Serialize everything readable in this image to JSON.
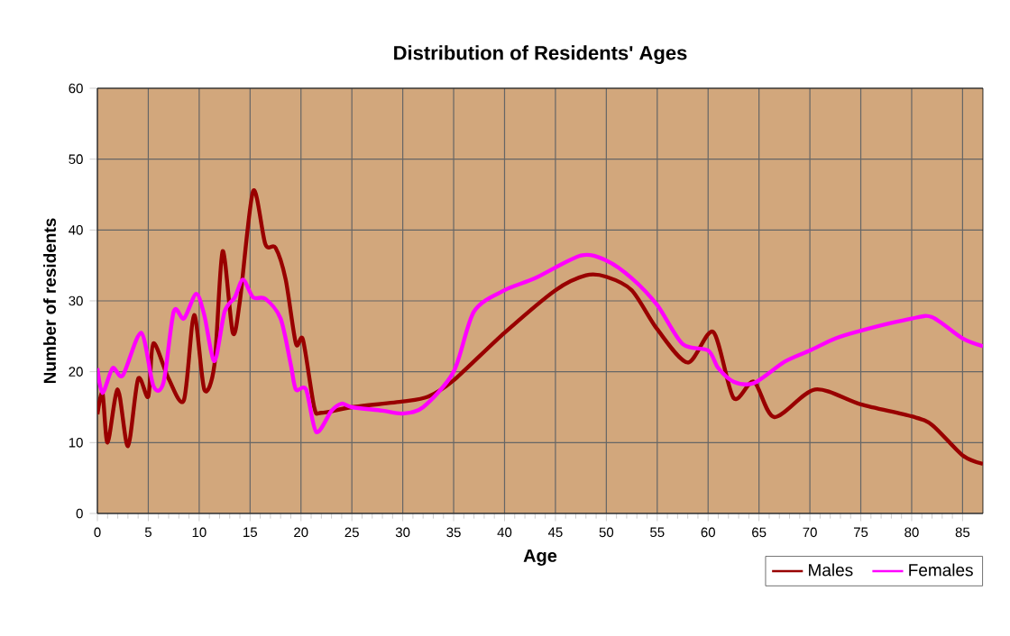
{
  "chart_data": {
    "type": "line",
    "title": "Distribution of Residents' Ages",
    "xlabel": "Age",
    "ylabel": "Number of residents",
    "xlim": [
      0,
      87
    ],
    "xticks": [
      0,
      5,
      10,
      15,
      20,
      25,
      30,
      35,
      40,
      45,
      50,
      55,
      60,
      65,
      70,
      75,
      80,
      85
    ],
    "ylim": [
      0,
      60
    ],
    "yticks": [
      0,
      10,
      20,
      30,
      40,
      50,
      60
    ],
    "grid": true,
    "legend": "bottom right",
    "series": [
      {
        "name": "Males",
        "color": "#990000",
        "x": [
          0,
          0.5,
          1,
          2,
          3,
          4,
          5,
          5.5,
          7,
          8.5,
          9.5,
          10.5,
          11.5,
          12.3,
          13.3,
          14,
          15.3,
          16.5,
          17.5,
          18.5,
          19.5,
          20.2,
          21.3,
          22,
          25,
          30,
          32.5,
          35,
          40,
          45,
          48,
          50,
          52.5,
          55,
          58,
          60.5,
          62.5,
          64.5,
          66.5,
          70.5,
          75,
          80,
          82,
          85,
          87
        ],
        "values": [
          14,
          17,
          10,
          17.5,
          9.5,
          19,
          16.5,
          24,
          19,
          16,
          28,
          17.5,
          21,
          37,
          25.5,
          30,
          45.5,
          38,
          37.5,
          33,
          24,
          24.5,
          15,
          14.2,
          15,
          15.8,
          16.5,
          18.8,
          25.5,
          31.5,
          33.6,
          33.4,
          31.5,
          26,
          21.3,
          25.6,
          16.3,
          18.6,
          13.6,
          17.5,
          15.4,
          13.7,
          12.5,
          8.2,
          7
        ]
      },
      {
        "name": "Females",
        "color": "#ff00ff",
        "x": [
          0,
          0.5,
          1.5,
          2.5,
          4.3,
          5.5,
          6.5,
          7.5,
          8.5,
          9.7,
          10.5,
          11.5,
          12.5,
          13.5,
          14.3,
          15.3,
          16.5,
          18,
          19,
          19.5,
          20.5,
          21.5,
          23,
          24,
          25,
          28,
          30,
          32,
          35,
          37,
          40,
          43,
          47.5,
          50,
          52.5,
          55,
          57.5,
          60,
          61,
          62.5,
          64.5,
          67.5,
          70,
          72.5,
          75,
          80,
          82,
          85,
          87
        ],
        "values": [
          20.5,
          17,
          20.5,
          19.5,
          25.5,
          18,
          18.5,
          28.5,
          27.5,
          31,
          28,
          21.5,
          28.5,
          30.5,
          33,
          30.5,
          30.3,
          27.5,
          21,
          17.5,
          17.5,
          11.5,
          14.5,
          15.5,
          15,
          14.5,
          14.1,
          15,
          20,
          28.5,
          31.5,
          33.2,
          36.4,
          35.7,
          33.2,
          29.4,
          23.9,
          23,
          20.5,
          18.6,
          18.4,
          21.4,
          23,
          24.7,
          25.8,
          27.5,
          27.7,
          24.7,
          23.6
        ]
      }
    ]
  }
}
